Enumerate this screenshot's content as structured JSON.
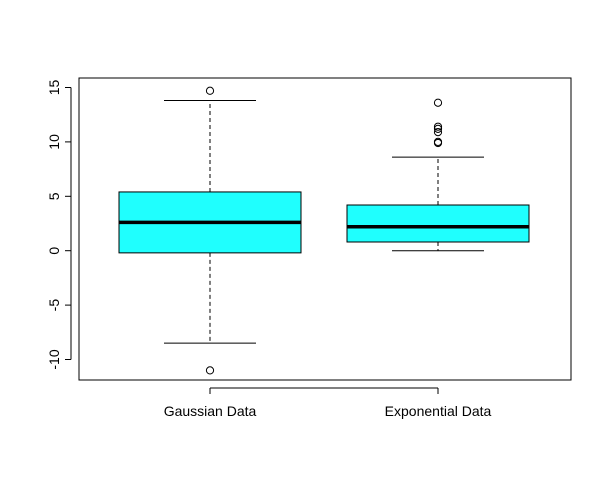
{
  "chart_data": {
    "type": "boxplot",
    "title": "",
    "xlabel": "",
    "ylabel": "",
    "ylim": [
      -12,
      16
    ],
    "y_ticks": [
      "-10",
      "-5",
      "0",
      "5",
      "10",
      "15"
    ],
    "box_color": "#1ffffe",
    "grid": false,
    "legend": "none",
    "categories": [
      "Gaussian Data",
      "Exponential Data"
    ],
    "boxes": [
      {
        "category": "Gaussian Data",
        "whisker_low": -8.5,
        "q1": -0.2,
        "median": 2.6,
        "q3": 5.4,
        "whisker_high": 13.8,
        "outliers": [
          14.7,
          -11.0
        ]
      },
      {
        "category": "Exponential Data",
        "whisker_low": 0.0,
        "q1": 0.8,
        "median": 2.2,
        "q3": 4.2,
        "whisker_high": 8.6,
        "outliers": [
          13.6,
          11.4,
          11.2,
          10.9,
          10.0,
          9.9
        ]
      }
    ]
  }
}
